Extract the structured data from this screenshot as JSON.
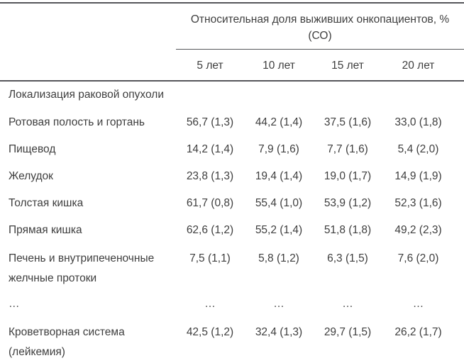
{
  "chart_data": {
    "type": "table",
    "header": {
      "group_label": "Относительная доля выживших онкопациентов, % (СО)",
      "columns": [
        "5 лет",
        "10 лет",
        "15 лет",
        "20 лет"
      ]
    },
    "section_label": "Локализация раковой опухоли",
    "rows": [
      {
        "label": "Ротовая полость и гортань",
        "values": [
          "56,7 (1,3)",
          "44,2 (1,4)",
          "37,5 (1,6)",
          "33,0 (1,8)"
        ]
      },
      {
        "label": "Пищевод",
        "values": [
          "14,2 (1,4)",
          "7,9 (1,6)",
          "7,7 (1,6)",
          "5,4 (2,0)"
        ]
      },
      {
        "label": "Желудок",
        "values": [
          "23,8 (1,3)",
          "19,4 (1,4)",
          "19,0 (1,7)",
          "14,9 (1,9)"
        ]
      },
      {
        "label": "Толстая кишка",
        "values": [
          "61,7 (0,8)",
          "55,4 (1,0)",
          "53,9 (1,2)",
          "52,3 (1,6)"
        ]
      },
      {
        "label": "Прямая кишка",
        "values": [
          "62,6 (1,2)",
          "55,2 (1,4)",
          "51,8 (1,8)",
          "49,2 (2,3)"
        ]
      },
      {
        "label": "Печень и внутрипеченочные желчные протоки",
        "values": [
          "7,5 (1,1)",
          "5,8 (1,2)",
          "6,3 (1,5)",
          "7,6 (2,0)"
        ]
      },
      {
        "label": "…",
        "values": [
          "…",
          "…",
          "…",
          "…"
        ]
      },
      {
        "label": "Кроветворная система (лейкемия)",
        "values": [
          "42,5 (1,2)",
          "32,4 (1,3)",
          "29,7 (1,5)",
          "26,2 (1,7)"
        ]
      }
    ],
    "layout_hints": {
      "grid": "horizontal rules only",
      "stub_column_header": ""
    }
  },
  "colors": {
    "text": "#3e3e3e",
    "rule": "#55565a",
    "background": "#ffffff"
  }
}
